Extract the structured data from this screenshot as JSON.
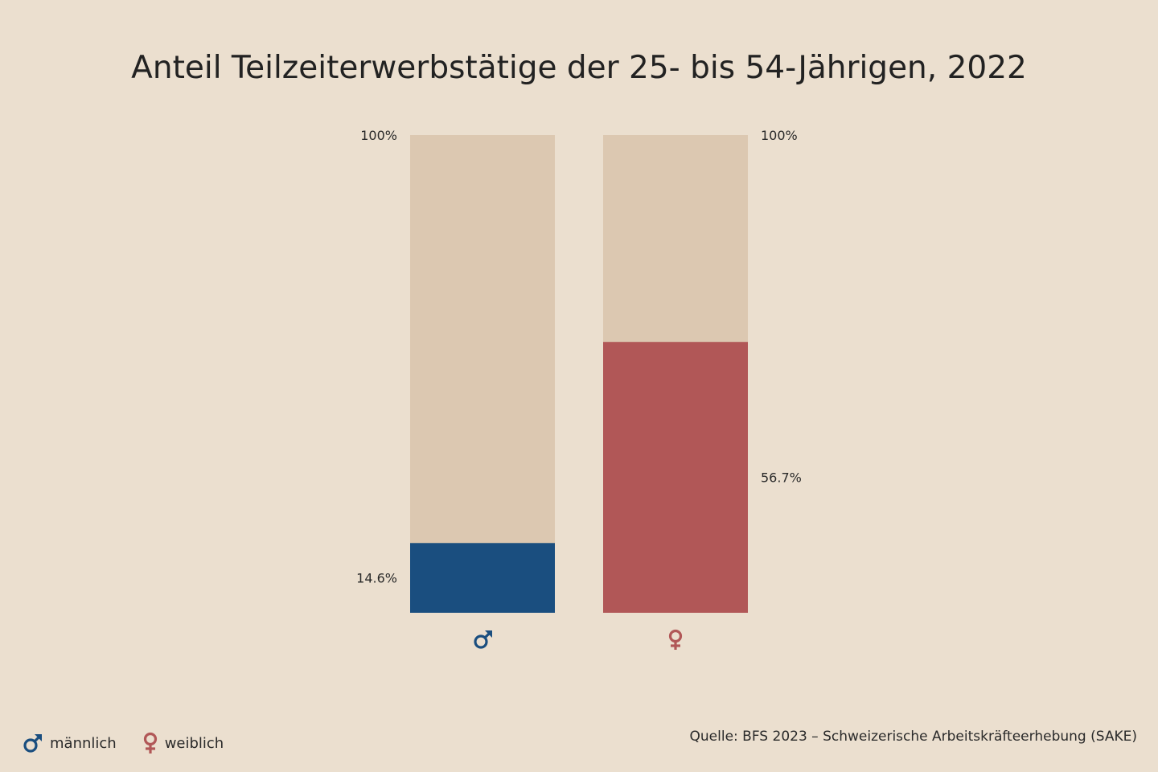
{
  "title": "Anteil Teilzeiterwerbstätige der 25- bis 54-Jährigen, 2022",
  "chart_data": {
    "type": "bar",
    "stacked_on_total": true,
    "categories": [
      "männlich",
      "weiblich"
    ],
    "values": [
      14.6,
      56.7
    ],
    "value_labels": [
      "14.6%",
      "56.7%"
    ],
    "total_label": "100%",
    "ylim": [
      0,
      100
    ],
    "grid": false,
    "legend": "bottom-left",
    "colors": {
      "männlich": "#1a4e7f",
      "weiblich": "#b15757",
      "remainder": "#dcc8b1"
    }
  },
  "legend": [
    {
      "label": "männlich",
      "icon": "male-symbol-icon",
      "color": "#1a4e7f"
    },
    {
      "label": "weiblich",
      "icon": "female-symbol-icon",
      "color": "#b15757"
    }
  ],
  "source": "Quelle: BFS 2023 – Schweizerische Arbeitskräfteerhebung (SAKE)",
  "background": "#ebdfcf"
}
